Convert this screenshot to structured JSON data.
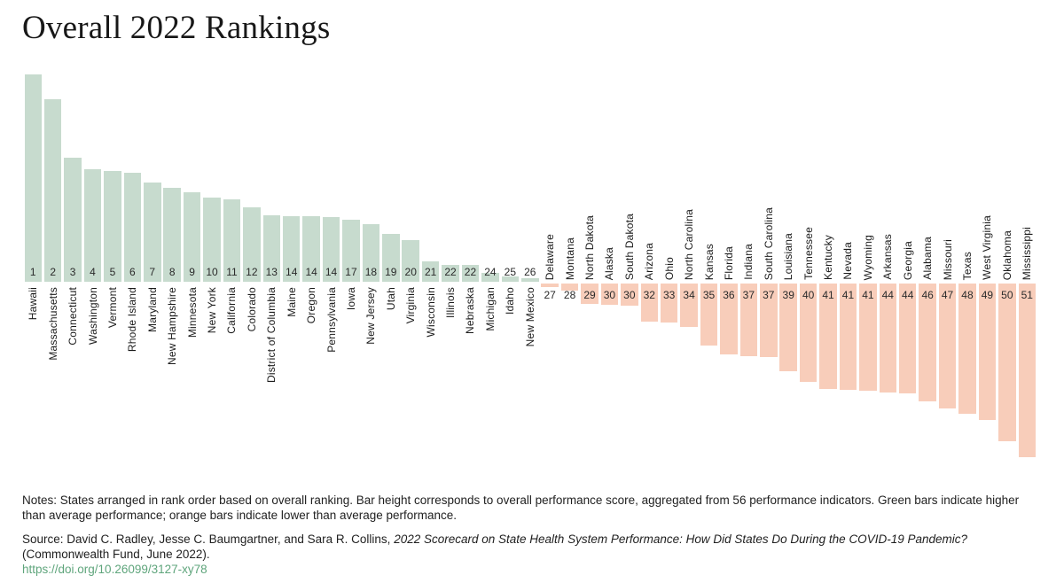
{
  "title": "Overall 2022 Rankings",
  "colors": {
    "above_average_green": "#c7dbce",
    "below_average_orange": "#f8cdba",
    "link_green": "#5fa57c"
  },
  "chart_data": {
    "type": "bar",
    "title": "Overall 2022 Rankings",
    "orientation": "diverging-vertical",
    "axis_note": "no y-axis shown; bar extent = overall performance score, positive (green) above average, negative (orange) below average; values estimated from pixels",
    "categories": [
      "Hawaii",
      "Massachusetts",
      "Connecticut",
      "Washington",
      "Vermont",
      "Rhode Island",
      "Maryland",
      "New Hampshire",
      "Minnesota",
      "New York",
      "California",
      "Colorado",
      "District of Columbia",
      "Maine",
      "Oregon",
      "Pennsylvania",
      "Iowa",
      "New Jersey",
      "Utah",
      "Virginia",
      "Wisconsin",
      "Illinois",
      "Nebraska",
      "Michigan",
      "Idaho",
      "New Mexico",
      "Delaware",
      "Montana",
      "North Dakota",
      "Alaska",
      "South Dakota",
      "Arizona",
      "Ohio",
      "North Carolina",
      "Kansas",
      "Florida",
      "Indiana",
      "South Carolina",
      "Louisiana",
      "Tennessee",
      "Kentucky",
      "Nevada",
      "Wyoming",
      "Arkansas",
      "Georgia",
      "Alabama",
      "Missouri",
      "Texas",
      "West Virginia",
      "Oklahoma",
      "Mississippi"
    ],
    "ranks": [
      1,
      2,
      3,
      4,
      5,
      6,
      7,
      8,
      9,
      10,
      11,
      12,
      13,
      14,
      14,
      14,
      17,
      18,
      19,
      20,
      21,
      22,
      22,
      24,
      25,
      26,
      27,
      28,
      29,
      30,
      30,
      32,
      33,
      34,
      35,
      36,
      37,
      37,
      39,
      40,
      41,
      41,
      41,
      44,
      44,
      46,
      47,
      48,
      49,
      50,
      51
    ],
    "values": [
      234,
      206,
      140,
      127,
      125,
      123,
      112,
      106,
      101,
      95,
      93,
      84,
      75,
      74,
      74,
      73,
      70,
      65,
      54,
      47,
      23,
      19,
      19,
      10,
      6,
      4,
      -4,
      -8,
      -23,
      -24,
      -25,
      -43,
      -44,
      -49,
      -70,
      -80,
      -82,
      -83,
      -99,
      -111,
      -119,
      -120,
      -121,
      -123,
      -124,
      -133,
      -141,
      -147,
      -154,
      -178,
      -196
    ],
    "legend": [
      "Green bars: higher than average performance",
      "Orange bars: lower than average performance"
    ]
  },
  "notes": "Notes: States arranged in rank order based on overall ranking. Bar height corresponds to overall performance score, aggregated from 56 performance indicators. Green bars indicate higher than average performance; orange bars indicate lower than average performance.",
  "source": {
    "prefix": "Source: David C. Radley, Jesse C. Baumgartner, and Sara R. Collins, ",
    "italic": "2022 Scorecard on State Health System Performance: How Did States Do During the COVID-19 Pandemic?",
    "suffix": " (Commonwealth Fund, June 2022).",
    "link": "https://doi.org/10.26099/3127-xy78"
  }
}
